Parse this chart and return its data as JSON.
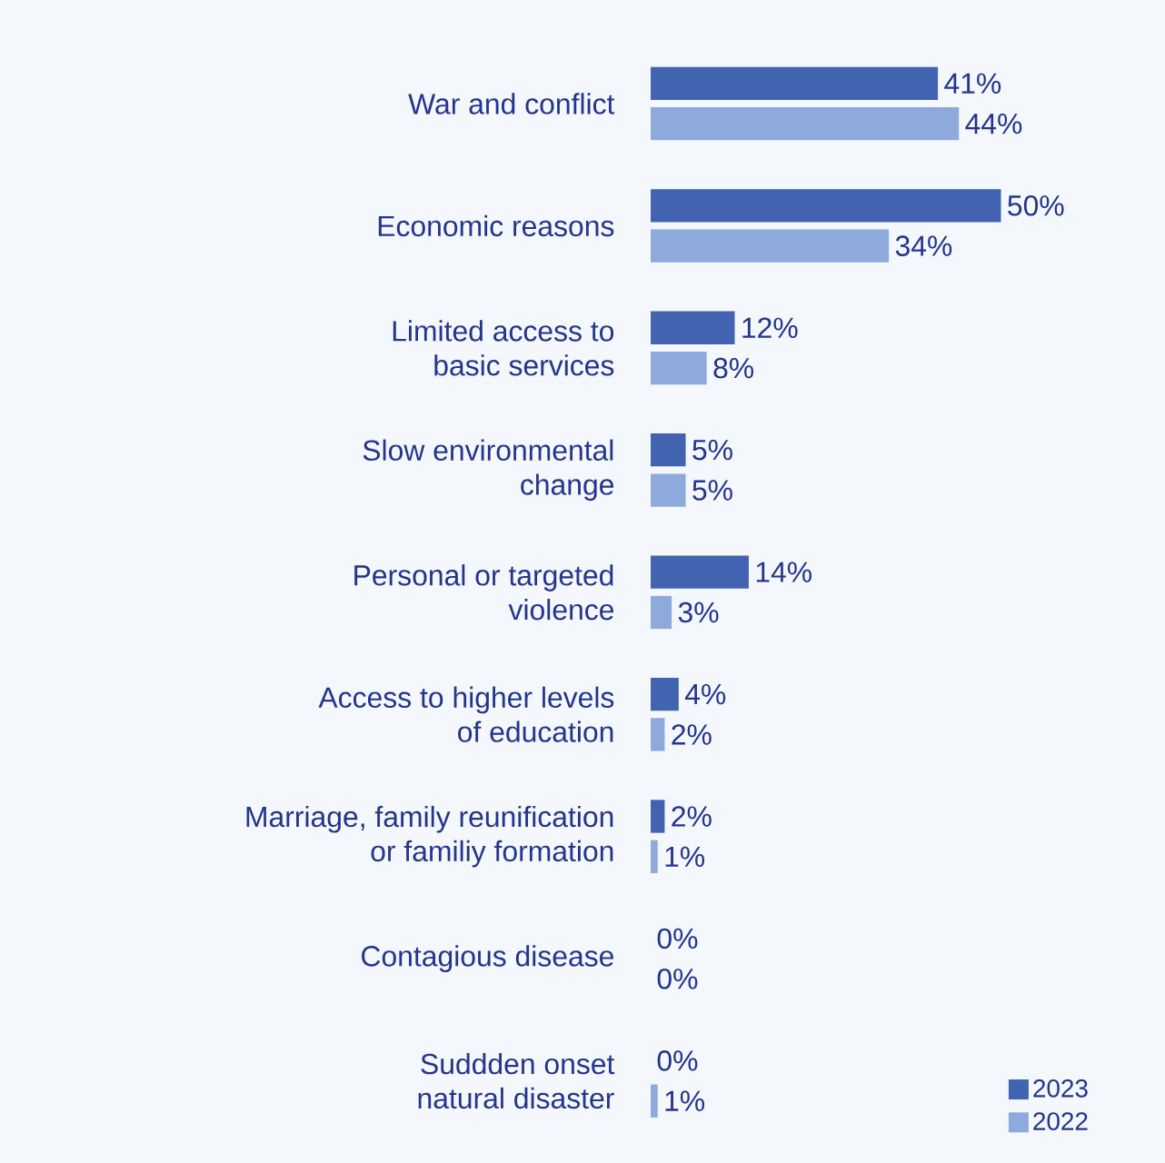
{
  "chart_data": {
    "type": "bar",
    "orientation": "horizontal",
    "categories": [
      "War and conflict",
      "Economic reasons",
      "Limited access to\nbasic services",
      "Slow environmental\nchange",
      "Personal or targeted\nviolence",
      "Access to higher levels\nof education",
      "Marriage, family reunification\nor familiy formation",
      "Contagious disease",
      "Suddden onset\nnatural disaster"
    ],
    "series": [
      {
        "name": "2023",
        "color": "#4263b0",
        "values": [
          41,
          50,
          12,
          5,
          14,
          4,
          2,
          0,
          0
        ],
        "value_labels": [
          "41%",
          "50%",
          "12%",
          "5%",
          "14%",
          "4%",
          "2%",
          "0%",
          "0%"
        ]
      },
      {
        "name": "2022",
        "color": "#8eaadc",
        "values": [
          44,
          34,
          8,
          5,
          3,
          2,
          1,
          0,
          1
        ],
        "value_labels": [
          "44%",
          "34%",
          "8%",
          "5%",
          "3%",
          "2%",
          "1%",
          "0%",
          "1%"
        ]
      }
    ],
    "legend": "bottom right"
  }
}
